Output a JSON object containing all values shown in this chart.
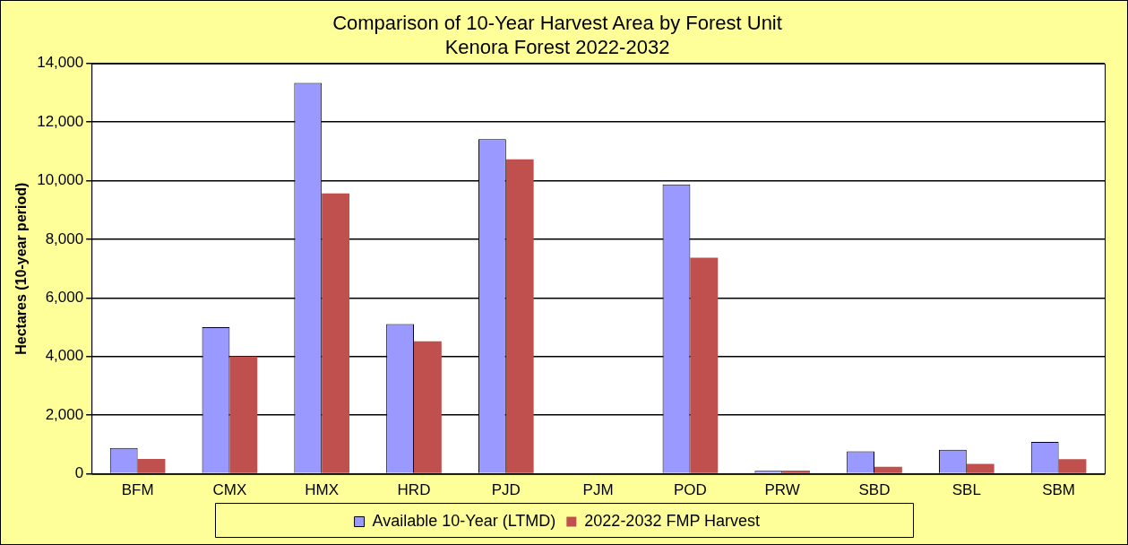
{
  "chart_data": {
    "type": "bar",
    "title": "Comparison of 10-Year Harvest Area by Forest Unit",
    "subtitle": "Kenora Forest 2022-2032",
    "ylabel": "Hectares (10-year period)",
    "categories": [
      "BFM",
      "CMX",
      "HMX",
      "HRD",
      "PJD",
      "PJM",
      "POD",
      "PRW",
      "SBD",
      "SBL",
      "SBM"
    ],
    "series": [
      {
        "name": "Available 10-Year (LTMD)",
        "color": "#9999ff",
        "values": [
          880,
          5000,
          13340,
          5110,
          11420,
          null,
          9870,
          100,
          770,
          820,
          1090
        ]
      },
      {
        "name": "2022-2032 FMP Harvest",
        "color": "#c0504d",
        "values": [
          510,
          4000,
          9570,
          4520,
          10730,
          null,
          7370,
          110,
          240,
          340,
          500
        ]
      }
    ],
    "ylim": [
      0,
      14000
    ],
    "yticks": [
      0,
      {
        "value": 2000,
        "label": "2,000"
      },
      {
        "value": 4000,
        "label": "4,000"
      },
      {
        "value": 6000,
        "label": "6,000"
      },
      {
        "value": 8000,
        "label": "8,000"
      },
      {
        "value": 10000,
        "label": "10,000"
      },
      {
        "value": 12000,
        "label": "12,000"
      },
      {
        "value": 14000,
        "label": "14,000"
      }
    ],
    "grid": "y",
    "legend": "bottom"
  }
}
